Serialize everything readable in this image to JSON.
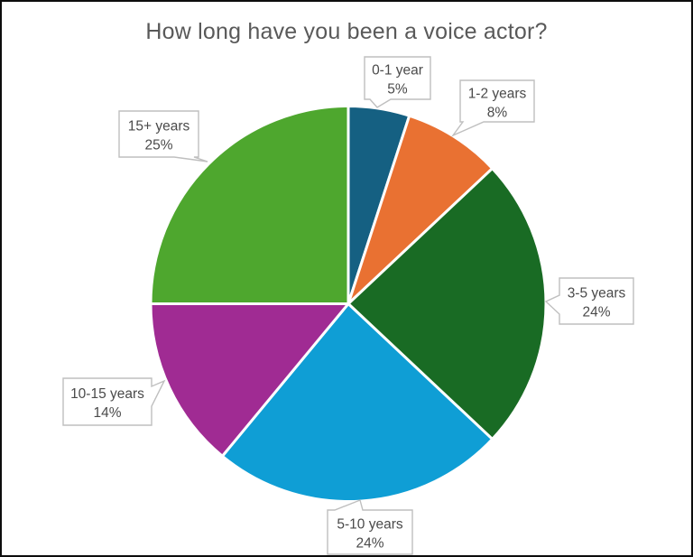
{
  "chart_data": {
    "type": "pie",
    "title": "How long have you been a voice actor?",
    "legend": "none",
    "label_style": "callout-boxes",
    "start_angle_deg": 0,
    "direction": "clockwise",
    "slices": [
      {
        "label": "0-1 year",
        "value": 5,
        "percent_label": "5%",
        "color": "#156082"
      },
      {
        "label": "1-2 years",
        "value": 8,
        "percent_label": "8%",
        "color": "#E97132"
      },
      {
        "label": "3-5 years",
        "value": 24,
        "percent_label": "24%",
        "color": "#196B24"
      },
      {
        "label": "5-10 years",
        "value": 24,
        "percent_label": "24%",
        "color": "#0F9ED5"
      },
      {
        "label": "10-15 years",
        "value": 14,
        "percent_label": "14%",
        "color": "#A02B93"
      },
      {
        "label": "15+ years",
        "value": 25,
        "percent_label": "25%",
        "color": "#4EA72E"
      }
    ]
  },
  "style": {
    "title_color": "#595959",
    "label_text_color": "#4a4a4a",
    "callout_border_color": "#bfbfbf",
    "slice_separator_color": "#ffffff",
    "frame_border_color": "#0d0d0d",
    "background_color": "#ffffff"
  }
}
